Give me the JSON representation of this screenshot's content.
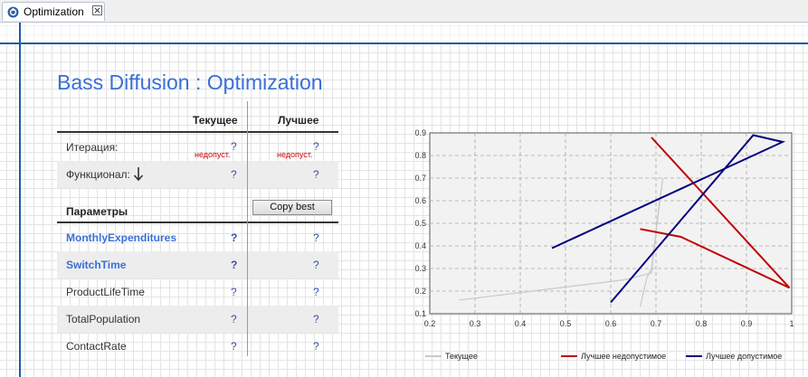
{
  "tab": {
    "label": "Optimization"
  },
  "title": "Bass Diffusion : Optimization",
  "table": {
    "col_current": "Текущее",
    "col_best": "Лучшее",
    "rows": [
      {
        "label": "Итерация:",
        "current": "?",
        "best": "?",
        "current_note": "недопуст.",
        "best_note": "недопуст."
      },
      {
        "label": "Функционал:",
        "current": "?",
        "best": "?"
      }
    ],
    "params_header": "Параметры",
    "copy_best_label": "Copy best",
    "params": [
      {
        "label": "MonthlyExpenditures",
        "current": "?",
        "best": "?"
      },
      {
        "label": "SwitchTime",
        "current": "?",
        "best": "?"
      },
      {
        "label": "ProductLifeTime",
        "current": "?",
        "best": "?"
      },
      {
        "label": "TotalPopulation",
        "current": "?",
        "best": "?"
      },
      {
        "label": "ContactRate",
        "current": "?",
        "best": "?"
      }
    ]
  },
  "chart_data": {
    "type": "line",
    "xlim": [
      0.2,
      1.0
    ],
    "ylim": [
      0.1,
      0.9
    ],
    "x_ticks": [
      "0.2",
      "0.3",
      "0.4",
      "0.5",
      "0.6",
      "0.7",
      "0.8",
      "0.9",
      "1"
    ],
    "y_ticks": [
      "0.1",
      "0.2",
      "0.3",
      "0.4",
      "0.5",
      "0.6",
      "0.7",
      "0.8",
      "0.9"
    ],
    "grid": true,
    "legend_position": "bottom",
    "series": [
      {
        "name": "Текущее",
        "color": "#c8c8c8",
        "points": [
          [
            0.265,
            0.16
          ],
          [
            0.63,
            0.25
          ],
          [
            0.69,
            0.28
          ],
          [
            0.705,
            0.55
          ],
          [
            0.715,
            0.7
          ],
          [
            0.69,
            0.3
          ],
          [
            0.68,
            0.26
          ],
          [
            0.665,
            0.13
          ]
        ]
      },
      {
        "name": "Лучшее недопустимое",
        "color": "#c00000",
        "points": [
          [
            0.69,
            0.88
          ],
          [
            0.995,
            0.215
          ],
          [
            0.755,
            0.44
          ],
          [
            0.665,
            0.475
          ]
        ]
      },
      {
        "name": "Лучшее допустимое",
        "color": "#000080",
        "points": [
          [
            0.6,
            0.15
          ],
          [
            0.915,
            0.89
          ],
          [
            0.98,
            0.86
          ],
          [
            0.47,
            0.39
          ]
        ]
      }
    ]
  }
}
